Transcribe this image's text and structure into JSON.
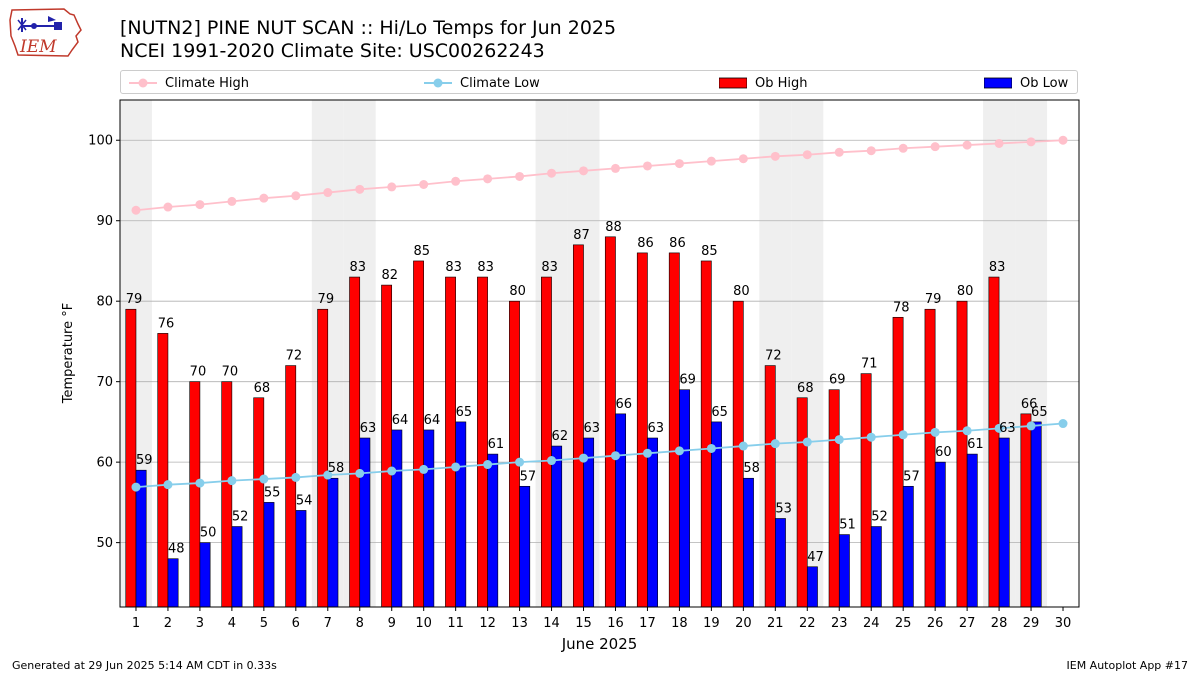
{
  "header": {
    "title_line1": "[NUTN2] PINE NUT SCAN :: Hi/Lo Temps for Jun 2025",
    "title_line2": "NCEI 1991-2020 Climate Site: USC00262243",
    "logo_text": "IEM"
  },
  "legend": [
    {
      "label": "Climate High",
      "kind": "line",
      "color": "#ffc0cb"
    },
    {
      "label": "Climate Low",
      "kind": "line",
      "color": "#87ceeb"
    },
    {
      "label": "Ob High",
      "kind": "bar",
      "color": "#ff0000"
    },
    {
      "label": "Ob Low",
      "kind": "bar",
      "color": "#0000ff"
    }
  ],
  "footer": {
    "left": "Generated at 29 Jun 2025 5:14 AM CDT in 0.33s",
    "right": "IEM Autoplot App #17"
  },
  "chart_data": {
    "type": "bar",
    "xlabel": "June 2025",
    "ylabel": "Temperature °F",
    "ylim": [
      42,
      105
    ],
    "yticks": [
      50,
      60,
      70,
      80,
      90,
      100
    ],
    "grid": true,
    "legend_position": "top",
    "weekend_shading_days": [
      1,
      7,
      8,
      14,
      15,
      21,
      22,
      28,
      29
    ],
    "shade_color": "#efefef",
    "x": [
      1,
      2,
      3,
      4,
      5,
      6,
      7,
      8,
      9,
      10,
      11,
      12,
      13,
      14,
      15,
      16,
      17,
      18,
      19,
      20,
      21,
      22,
      23,
      24,
      25,
      26,
      27,
      28,
      29,
      30
    ],
    "series": [
      {
        "name": "Ob High",
        "kind": "bar",
        "color": "#ff0000",
        "values": [
          79,
          76,
          70,
          70,
          68,
          72,
          79,
          83,
          82,
          85,
          83,
          83,
          80,
          83,
          87,
          88,
          86,
          86,
          85,
          80,
          72,
          68,
          69,
          71,
          78,
          79,
          80,
          83,
          66,
          null
        ]
      },
      {
        "name": "Ob Low",
        "kind": "bar",
        "color": "#0000ff",
        "values": [
          59,
          48,
          50,
          52,
          55,
          54,
          58,
          63,
          64,
          64,
          65,
          61,
          57,
          62,
          63,
          66,
          63,
          69,
          65,
          58,
          53,
          47,
          51,
          52,
          57,
          60,
          61,
          63,
          65,
          null
        ]
      },
      {
        "name": "Climate High",
        "kind": "line",
        "color": "#ffc0cb",
        "values": [
          91.3,
          91.7,
          92.0,
          92.4,
          92.8,
          93.1,
          93.5,
          93.9,
          94.2,
          94.5,
          94.9,
          95.2,
          95.5,
          95.9,
          96.2,
          96.5,
          96.8,
          97.1,
          97.4,
          97.7,
          98.0,
          98.2,
          98.5,
          98.7,
          99.0,
          99.2,
          99.4,
          99.6,
          99.8,
          100.0
        ]
      },
      {
        "name": "Climate Low",
        "kind": "line",
        "color": "#87ceeb",
        "values": [
          56.9,
          57.2,
          57.4,
          57.7,
          57.9,
          58.1,
          58.4,
          58.6,
          58.9,
          59.1,
          59.4,
          59.7,
          60.0,
          60.2,
          60.5,
          60.8,
          61.1,
          61.4,
          61.7,
          62.0,
          62.3,
          62.5,
          62.8,
          63.1,
          63.4,
          63.7,
          63.9,
          64.2,
          64.5,
          64.8
        ]
      }
    ]
  }
}
